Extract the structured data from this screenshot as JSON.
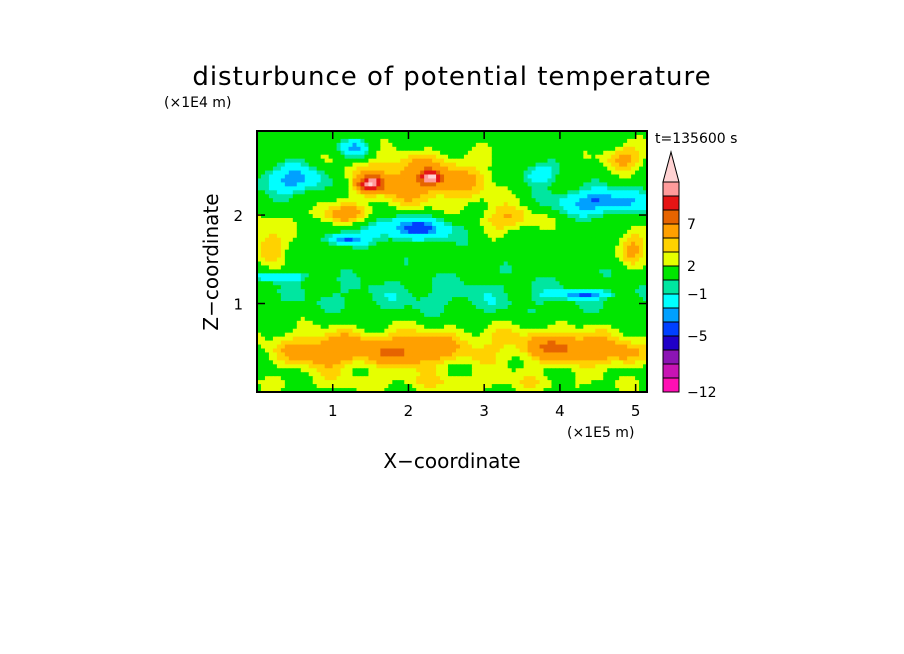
{
  "chart_data": {
    "type": "heatmap",
    "title": "disturbunce of potential temperature",
    "xlabel": "X−coordinate",
    "ylabel": "Z−coordinate",
    "x_unit": "(×1E5 m)",
    "y_unit": "(×1E4 m)",
    "time_label": "t=135600 s",
    "xlim": [
      0,
      5.15
    ],
    "ylim": [
      0,
      2.95
    ],
    "x_ticks": [
      {
        "value": 1,
        "label": "1"
      },
      {
        "value": 2,
        "label": "2"
      },
      {
        "value": 3,
        "label": "3"
      },
      {
        "value": 4,
        "label": "4"
      },
      {
        "value": 5,
        "label": "5"
      }
    ],
    "y_ticks": [
      {
        "value": 1,
        "label": "1"
      },
      {
        "value": 2,
        "label": "2"
      }
    ],
    "colorbar": {
      "levels": [
        -12,
        -11,
        -9,
        -7,
        -5,
        -4,
        -2,
        -1,
        1,
        2,
        3,
        5,
        7,
        9,
        11
      ],
      "labeled_levels": [
        {
          "value": 7,
          "label": "7"
        },
        {
          "value": 2,
          "label": "2"
        },
        {
          "value": -1,
          "label": "−1"
        },
        {
          "value": -5,
          "label": "−5"
        },
        {
          "value": -12,
          "label": "−12"
        }
      ],
      "colors": [
        "#ff10b4",
        "#c814b4",
        "#8c14b4",
        "#2000c8",
        "#0040ff",
        "#00a0ff",
        "#00ffff",
        "#00e6a0",
        "#00e600",
        "#e6ff00",
        "#ffd200",
        "#ffa000",
        "#e66400",
        "#e61414",
        "#ff9b9b",
        "#ffd2d2"
      ],
      "extend": "max"
    },
    "features": [
      {
        "x": 2.55,
        "z": 1.05,
        "rx": 2.6,
        "rz": 0.28,
        "value": -1.5
      },
      {
        "x": 2.55,
        "z": 0.55,
        "rx": 2.6,
        "rz": 0.3,
        "value": 2.2
      },
      {
        "x": 0.9,
        "z": 0.45,
        "rx": 0.55,
        "rz": 0.18,
        "value": 3.5
      },
      {
        "x": 2.0,
        "z": 0.45,
        "rx": 0.5,
        "rz": 0.16,
        "value": 3.5
      },
      {
        "x": 4.1,
        "z": 0.5,
        "rx": 0.5,
        "rz": 0.16,
        "value": 4.0
      },
      {
        "x": 4.8,
        "z": 0.42,
        "rx": 0.3,
        "rz": 0.13,
        "value": 3.0
      },
      {
        "x": 2.5,
        "z": 0.1,
        "rx": 2.6,
        "rz": 0.12,
        "value": 1.5
      },
      {
        "x": 2.15,
        "z": 2.4,
        "rx": 1.0,
        "rz": 0.28,
        "value": 4.5
      },
      {
        "x": 1.5,
        "z": 2.35,
        "rx": 0.15,
        "rz": 0.08,
        "value": 8.0
      },
      {
        "x": 2.3,
        "z": 2.42,
        "rx": 0.12,
        "rz": 0.07,
        "value": 8.0
      },
      {
        "x": 2.05,
        "z": 1.85,
        "rx": 0.6,
        "rz": 0.13,
        "value": -5.5
      },
      {
        "x": 1.15,
        "z": 1.72,
        "rx": 0.25,
        "rz": 0.07,
        "value": -5.0
      },
      {
        "x": 0.5,
        "z": 2.4,
        "rx": 0.45,
        "rz": 0.16,
        "value": -5.0
      },
      {
        "x": 4.55,
        "z": 2.15,
        "rx": 0.6,
        "rz": 0.14,
        "value": -5.5
      },
      {
        "x": 3.7,
        "z": 2.45,
        "rx": 0.25,
        "rz": 0.12,
        "value": -4.0
      },
      {
        "x": 4.85,
        "z": 2.65,
        "rx": 0.3,
        "rz": 0.15,
        "value": 3.5
      },
      {
        "x": 1.1,
        "z": 2.0,
        "rx": 0.4,
        "rz": 0.12,
        "value": 3.5
      },
      {
        "x": 0.15,
        "z": 1.7,
        "rx": 0.25,
        "rz": 0.25,
        "value": 3.0
      },
      {
        "x": 4.95,
        "z": 1.65,
        "rx": 0.2,
        "rz": 0.2,
        "value": 3.5
      },
      {
        "x": 3.3,
        "z": 1.95,
        "rx": 0.45,
        "rz": 0.15,
        "value": 3.0
      },
      {
        "x": 1.3,
        "z": 2.75,
        "rx": 0.2,
        "rz": 0.1,
        "value": -4.5
      },
      {
        "x": 0.3,
        "z": 1.3,
        "rx": 0.3,
        "rz": 0.05,
        "value": -4.5
      },
      {
        "x": 4.3,
        "z": 1.1,
        "rx": 0.4,
        "rz": 0.05,
        "value": -4.0
      }
    ]
  }
}
